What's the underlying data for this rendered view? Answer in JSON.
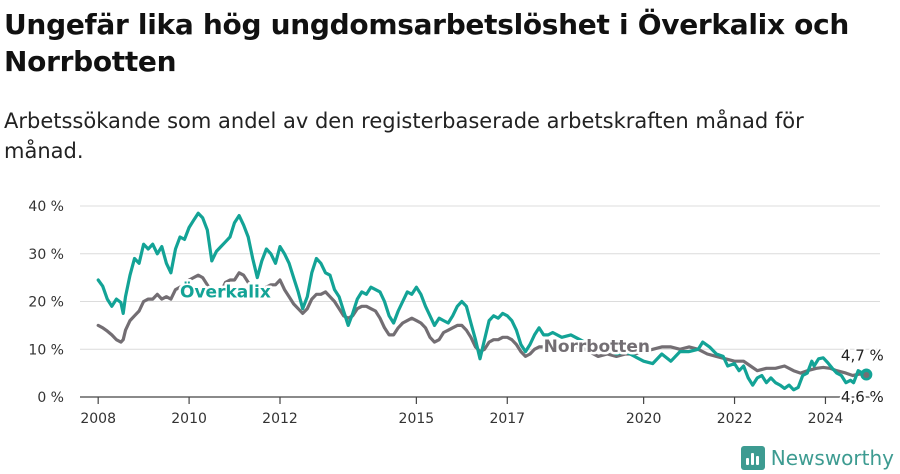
{
  "title": "Ungefär lika hög ungdomsarbetslöshet i Överkalix och Norrbotten",
  "subtitle": "Arbetssökande som andel av den registerbaserade arbetskraften månad för månad.",
  "brand": "Newsworthy",
  "colors": {
    "overkalix": "#13a396",
    "norrbotten": "#736e73",
    "grid": "#dcdcdc"
  },
  "chart_data": {
    "type": "line",
    "title": "Ungefär lika hög ungdomsarbetslöshet i Överkalix och Norrbotten",
    "xlabel": "",
    "ylabel": "",
    "x_range": [
      2007.6,
      2025.2
    ],
    "ylim": [
      0,
      40
    ],
    "y_ticks": [
      0,
      10,
      20,
      30,
      40
    ],
    "y_tick_labels": [
      "0 %",
      "10 %",
      "20 %",
      "30 %",
      "40 %"
    ],
    "x_ticks": [
      2008,
      2010,
      2012,
      2015,
      2017,
      2020,
      2022,
      2024
    ],
    "x_tick_labels": [
      "2008",
      "2010",
      "2012",
      "2015",
      "2017",
      "2020",
      "2022",
      "2024"
    ],
    "grid": true,
    "series": [
      {
        "name": "Överkalix",
        "color": "#13a396",
        "label_at": [
          2009.8,
          20.8
        ],
        "end_label": "4,7 %",
        "points": [
          [
            2008.0,
            24.5
          ],
          [
            2008.1,
            23.2
          ],
          [
            2008.2,
            20.5
          ],
          [
            2008.3,
            19.0
          ],
          [
            2008.4,
            20.5
          ],
          [
            2008.5,
            19.8
          ],
          [
            2008.55,
            17.5
          ],
          [
            2008.6,
            21.0
          ],
          [
            2008.7,
            25.5
          ],
          [
            2008.8,
            29.0
          ],
          [
            2008.9,
            28.0
          ],
          [
            2009.0,
            32.0
          ],
          [
            2009.1,
            31.0
          ],
          [
            2009.2,
            32.0
          ],
          [
            2009.3,
            30.0
          ],
          [
            2009.4,
            31.5
          ],
          [
            2009.5,
            28.0
          ],
          [
            2009.6,
            26.0
          ],
          [
            2009.7,
            31.0
          ],
          [
            2009.8,
            33.5
          ],
          [
            2009.9,
            33.0
          ],
          [
            2010.0,
            35.5
          ],
          [
            2010.1,
            37.0
          ],
          [
            2010.2,
            38.5
          ],
          [
            2010.3,
            37.5
          ],
          [
            2010.4,
            35.0
          ],
          [
            2010.5,
            28.5
          ],
          [
            2010.6,
            30.5
          ],
          [
            2010.7,
            31.5
          ],
          [
            2010.8,
            32.5
          ],
          [
            2010.9,
            33.5
          ],
          [
            2011.0,
            36.5
          ],
          [
            2011.1,
            38.0
          ],
          [
            2011.2,
            36.0
          ],
          [
            2011.3,
            33.5
          ],
          [
            2011.4,
            29.0
          ],
          [
            2011.5,
            25.0
          ],
          [
            2011.6,
            28.5
          ],
          [
            2011.7,
            31.0
          ],
          [
            2011.8,
            30.0
          ],
          [
            2011.9,
            28.0
          ],
          [
            2012.0,
            31.5
          ],
          [
            2012.1,
            30.0
          ],
          [
            2012.2,
            28.0
          ],
          [
            2012.3,
            25.0
          ],
          [
            2012.4,
            22.0
          ],
          [
            2012.5,
            18.5
          ],
          [
            2012.6,
            21.0
          ],
          [
            2012.7,
            26.0
          ],
          [
            2012.8,
            29.0
          ],
          [
            2012.9,
            28.0
          ],
          [
            2013.0,
            26.0
          ],
          [
            2013.1,
            25.5
          ],
          [
            2013.2,
            22.5
          ],
          [
            2013.3,
            21.0
          ],
          [
            2013.4,
            18.0
          ],
          [
            2013.5,
            15.0
          ],
          [
            2013.6,
            17.5
          ],
          [
            2013.7,
            20.5
          ],
          [
            2013.8,
            22.0
          ],
          [
            2013.9,
            21.5
          ],
          [
            2014.0,
            23.0
          ],
          [
            2014.1,
            22.5
          ],
          [
            2014.2,
            22.0
          ],
          [
            2014.3,
            20.0
          ],
          [
            2014.4,
            17.0
          ],
          [
            2014.5,
            15.5
          ],
          [
            2014.6,
            18.0
          ],
          [
            2014.7,
            20.0
          ],
          [
            2014.8,
            22.0
          ],
          [
            2014.9,
            21.5
          ],
          [
            2015.0,
            23.0
          ],
          [
            2015.1,
            21.5
          ],
          [
            2015.2,
            19.0
          ],
          [
            2015.3,
            17.0
          ],
          [
            2015.4,
            15.0
          ],
          [
            2015.5,
            16.5
          ],
          [
            2015.6,
            16.0
          ],
          [
            2015.7,
            15.5
          ],
          [
            2015.8,
            17.0
          ],
          [
            2015.9,
            19.0
          ],
          [
            2016.0,
            20.0
          ],
          [
            2016.1,
            19.0
          ],
          [
            2016.2,
            15.5
          ],
          [
            2016.3,
            12.0
          ],
          [
            2016.4,
            8.0
          ],
          [
            2016.5,
            12.0
          ],
          [
            2016.6,
            16.0
          ],
          [
            2016.7,
            17.0
          ],
          [
            2016.8,
            16.5
          ],
          [
            2016.9,
            17.5
          ],
          [
            2017.0,
            17.0
          ],
          [
            2017.1,
            16.0
          ],
          [
            2017.2,
            14.0
          ],
          [
            2017.3,
            11.0
          ],
          [
            2017.4,
            9.5
          ],
          [
            2017.5,
            11.0
          ],
          [
            2017.6,
            13.0
          ],
          [
            2017.7,
            14.5
          ],
          [
            2017.8,
            13.0
          ],
          [
            2017.9,
            13.0
          ],
          [
            2018.0,
            13.5
          ],
          [
            2018.2,
            12.5
          ],
          [
            2018.4,
            13.0
          ],
          [
            2018.6,
            12.0
          ],
          [
            2018.8,
            11.0
          ],
          [
            2019.0,
            10.5
          ],
          [
            2019.2,
            10.0
          ],
          [
            2019.4,
            9.0
          ],
          [
            2019.6,
            9.5
          ],
          [
            2019.8,
            8.5
          ],
          [
            2020.0,
            7.5
          ],
          [
            2020.2,
            7.0
          ],
          [
            2020.4,
            9.0
          ],
          [
            2020.6,
            7.5
          ],
          [
            2020.8,
            9.5
          ],
          [
            2021.0,
            9.5
          ],
          [
            2021.2,
            10.0
          ],
          [
            2021.3,
            11.5
          ],
          [
            2021.45,
            10.5
          ],
          [
            2021.6,
            9.0
          ],
          [
            2021.75,
            8.5
          ],
          [
            2021.85,
            6.5
          ],
          [
            2022.0,
            7.0
          ],
          [
            2022.1,
            5.5
          ],
          [
            2022.2,
            6.5
          ],
          [
            2022.3,
            4.0
          ],
          [
            2022.4,
            2.5
          ],
          [
            2022.5,
            4.0
          ],
          [
            2022.6,
            4.5
          ],
          [
            2022.7,
            3.0
          ],
          [
            2022.8,
            4.0
          ],
          [
            2022.9,
            3.0
          ],
          [
            2023.0,
            2.5
          ],
          [
            2023.1,
            1.8
          ],
          [
            2023.2,
            2.5
          ],
          [
            2023.3,
            1.5
          ],
          [
            2023.4,
            2.0
          ],
          [
            2023.5,
            4.5
          ],
          [
            2023.6,
            5.0
          ],
          [
            2023.7,
            7.5
          ],
          [
            2023.75,
            6.5
          ],
          [
            2023.85,
            8.0
          ],
          [
            2023.95,
            8.2
          ],
          [
            2024.05,
            7.2
          ],
          [
            2024.15,
            6.0
          ],
          [
            2024.25,
            5.0
          ],
          [
            2024.35,
            4.5
          ],
          [
            2024.45,
            3.0
          ],
          [
            2024.55,
            3.5
          ],
          [
            2024.62,
            3.0
          ],
          [
            2024.72,
            5.5
          ],
          [
            2024.82,
            5.0
          ],
          [
            2024.9,
            4.7
          ]
        ]
      },
      {
        "name": "Norrbotten",
        "color": "#736e73",
        "label_at": [
          2017.8,
          9.4
        ],
        "end_label": "4,6 %",
        "points": [
          [
            2008.0,
            15.0
          ],
          [
            2008.1,
            14.5
          ],
          [
            2008.2,
            13.8
          ],
          [
            2008.3,
            13.0
          ],
          [
            2008.4,
            12.0
          ],
          [
            2008.5,
            11.5
          ],
          [
            2008.55,
            12.0
          ],
          [
            2008.6,
            14.0
          ],
          [
            2008.7,
            16.0
          ],
          [
            2008.8,
            17.0
          ],
          [
            2008.9,
            18.0
          ],
          [
            2009.0,
            20.0
          ],
          [
            2009.1,
            20.5
          ],
          [
            2009.2,
            20.5
          ],
          [
            2009.3,
            21.5
          ],
          [
            2009.4,
            20.5
          ],
          [
            2009.5,
            21.0
          ],
          [
            2009.6,
            20.5
          ],
          [
            2009.7,
            22.5
          ],
          [
            2009.8,
            23.0
          ],
          [
            2009.9,
            23.5
          ],
          [
            2010.0,
            24.5
          ],
          [
            2010.1,
            25.0
          ],
          [
            2010.2,
            25.5
          ],
          [
            2010.3,
            25.0
          ],
          [
            2010.4,
            23.5
          ],
          [
            2010.5,
            22.0
          ],
          [
            2010.6,
            22.5
          ],
          [
            2010.7,
            22.0
          ],
          [
            2010.8,
            24.0
          ],
          [
            2010.9,
            24.5
          ],
          [
            2011.0,
            24.5
          ],
          [
            2011.1,
            26.0
          ],
          [
            2011.2,
            25.5
          ],
          [
            2011.3,
            24.0
          ],
          [
            2011.4,
            22.5
          ],
          [
            2011.5,
            21.0
          ],
          [
            2011.6,
            22.0
          ],
          [
            2011.7,
            23.0
          ],
          [
            2011.8,
            23.5
          ],
          [
            2011.9,
            23.5
          ],
          [
            2012.0,
            24.5
          ],
          [
            2012.1,
            22.5
          ],
          [
            2012.2,
            21.0
          ],
          [
            2012.3,
            19.5
          ],
          [
            2012.4,
            18.5
          ],
          [
            2012.5,
            17.5
          ],
          [
            2012.6,
            18.5
          ],
          [
            2012.7,
            20.5
          ],
          [
            2012.8,
            21.5
          ],
          [
            2012.9,
            21.5
          ],
          [
            2013.0,
            22.0
          ],
          [
            2013.1,
            21.0
          ],
          [
            2013.2,
            20.0
          ],
          [
            2013.3,
            18.5
          ],
          [
            2013.4,
            17.0
          ],
          [
            2013.5,
            16.5
          ],
          [
            2013.6,
            17.0
          ],
          [
            2013.7,
            18.5
          ],
          [
            2013.8,
            19.0
          ],
          [
            2013.9,
            19.0
          ],
          [
            2014.0,
            18.5
          ],
          [
            2014.1,
            18.0
          ],
          [
            2014.2,
            16.5
          ],
          [
            2014.3,
            14.5
          ],
          [
            2014.4,
            13.0
          ],
          [
            2014.5,
            13.0
          ],
          [
            2014.6,
            14.5
          ],
          [
            2014.7,
            15.5
          ],
          [
            2014.8,
            16.0
          ],
          [
            2014.9,
            16.5
          ],
          [
            2015.0,
            16.0
          ],
          [
            2015.1,
            15.5
          ],
          [
            2015.2,
            14.5
          ],
          [
            2015.3,
            12.5
          ],
          [
            2015.4,
            11.5
          ],
          [
            2015.5,
            12.0
          ],
          [
            2015.6,
            13.5
          ],
          [
            2015.7,
            14.0
          ],
          [
            2015.8,
            14.5
          ],
          [
            2015.9,
            15.0
          ],
          [
            2016.0,
            15.0
          ],
          [
            2016.1,
            14.0
          ],
          [
            2016.2,
            12.5
          ],
          [
            2016.3,
            10.5
          ],
          [
            2016.4,
            9.5
          ],
          [
            2016.5,
            10.0
          ],
          [
            2016.6,
            11.5
          ],
          [
            2016.7,
            12.0
          ],
          [
            2016.8,
            12.0
          ],
          [
            2016.9,
            12.5
          ],
          [
            2017.0,
            12.5
          ],
          [
            2017.1,
            12.0
          ],
          [
            2017.2,
            11.0
          ],
          [
            2017.3,
            9.5
          ],
          [
            2017.4,
            8.5
          ],
          [
            2017.5,
            9.0
          ],
          [
            2017.6,
            10.0
          ],
          [
            2017.7,
            10.5
          ],
          [
            2017.8,
            10.5
          ],
          [
            2018.0,
            10.5
          ],
          [
            2018.2,
            10.0
          ],
          [
            2018.4,
            10.5
          ],
          [
            2018.6,
            10.5
          ],
          [
            2018.8,
            9.5
          ],
          [
            2019.0,
            8.5
          ],
          [
            2019.2,
            9.0
          ],
          [
            2019.4,
            8.5
          ],
          [
            2019.6,
            9.0
          ],
          [
            2019.8,
            9.0
          ],
          [
            2020.0,
            9.5
          ],
          [
            2020.2,
            10.0
          ],
          [
            2020.4,
            10.5
          ],
          [
            2020.6,
            10.5
          ],
          [
            2020.8,
            10.0
          ],
          [
            2021.0,
            10.5
          ],
          [
            2021.2,
            10.0
          ],
          [
            2021.4,
            9.0
          ],
          [
            2021.6,
            8.5
          ],
          [
            2021.8,
            8.0
          ],
          [
            2022.0,
            7.5
          ],
          [
            2022.2,
            7.5
          ],
          [
            2022.35,
            6.5
          ],
          [
            2022.5,
            5.5
          ],
          [
            2022.7,
            6.0
          ],
          [
            2022.9,
            6.0
          ],
          [
            2023.1,
            6.5
          ],
          [
            2023.3,
            5.5
          ],
          [
            2023.45,
            5.0
          ],
          [
            2023.6,
            5.5
          ],
          [
            2023.8,
            6.0
          ],
          [
            2023.95,
            6.2
          ],
          [
            2024.1,
            6.0
          ],
          [
            2024.25,
            5.5
          ],
          [
            2024.45,
            5.0
          ],
          [
            2024.6,
            4.5
          ],
          [
            2024.75,
            4.8
          ],
          [
            2024.9,
            4.6
          ]
        ]
      }
    ]
  }
}
